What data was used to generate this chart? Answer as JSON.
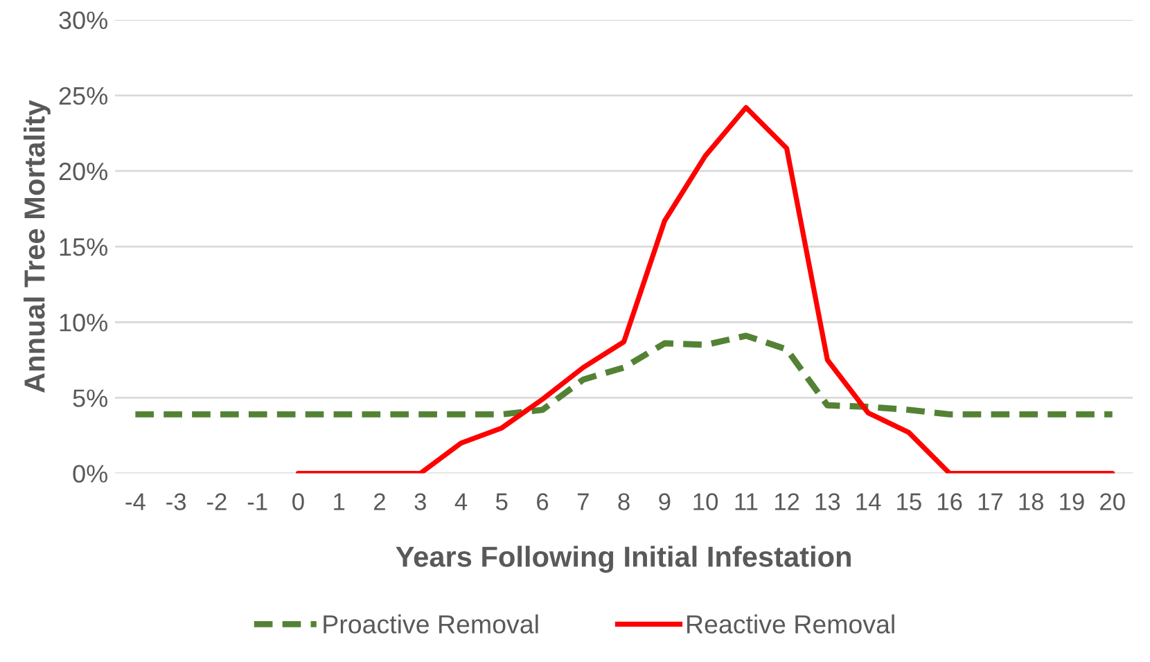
{
  "chart_data": {
    "type": "line",
    "xlabel": "Years Following Initial Infestation",
    "ylabel": "Annual Tree Mortality",
    "categories": [
      "-4",
      "-3",
      "-2",
      "-1",
      "0",
      "1",
      "2",
      "3",
      "4",
      "5",
      "6",
      "7",
      "8",
      "9",
      "10",
      "11",
      "12",
      "13",
      "14",
      "15",
      "16",
      "17",
      "18",
      "19",
      "20"
    ],
    "series": [
      {
        "name": "Proactive Removal",
        "color": "#548235",
        "line_style": "dashed",
        "values": [
          3.9,
          3.9,
          3.9,
          3.9,
          3.9,
          3.9,
          3.9,
          3.9,
          3.9,
          3.9,
          4.2,
          6.2,
          7.0,
          8.6,
          8.5,
          9.1,
          8.2,
          4.5,
          4.4,
          4.2,
          3.9,
          3.9,
          3.9,
          3.9,
          3.9
        ]
      },
      {
        "name": "Reactive Removal",
        "color": "#ff0000",
        "line_style": "solid",
        "values": [
          null,
          null,
          null,
          null,
          0,
          0,
          0,
          0,
          2.0,
          3.0,
          4.9,
          7.0,
          8.7,
          16.7,
          21.0,
          24.2,
          21.5,
          7.5,
          4.0,
          2.7,
          0,
          0,
          0,
          0,
          0
        ]
      }
    ],
    "ylim": [
      0,
      30
    ],
    "yticks": [
      {
        "value": 0,
        "label": "0%"
      },
      {
        "value": 5,
        "label": "5%"
      },
      {
        "value": 10,
        "label": "10%"
      },
      {
        "value": 15,
        "label": "15%"
      },
      {
        "value": 20,
        "label": "20%"
      },
      {
        "value": 25,
        "label": "25%"
      },
      {
        "value": 30,
        "label": "30%"
      }
    ],
    "grid": "y",
    "legend": "bottom",
    "marker": "none"
  }
}
